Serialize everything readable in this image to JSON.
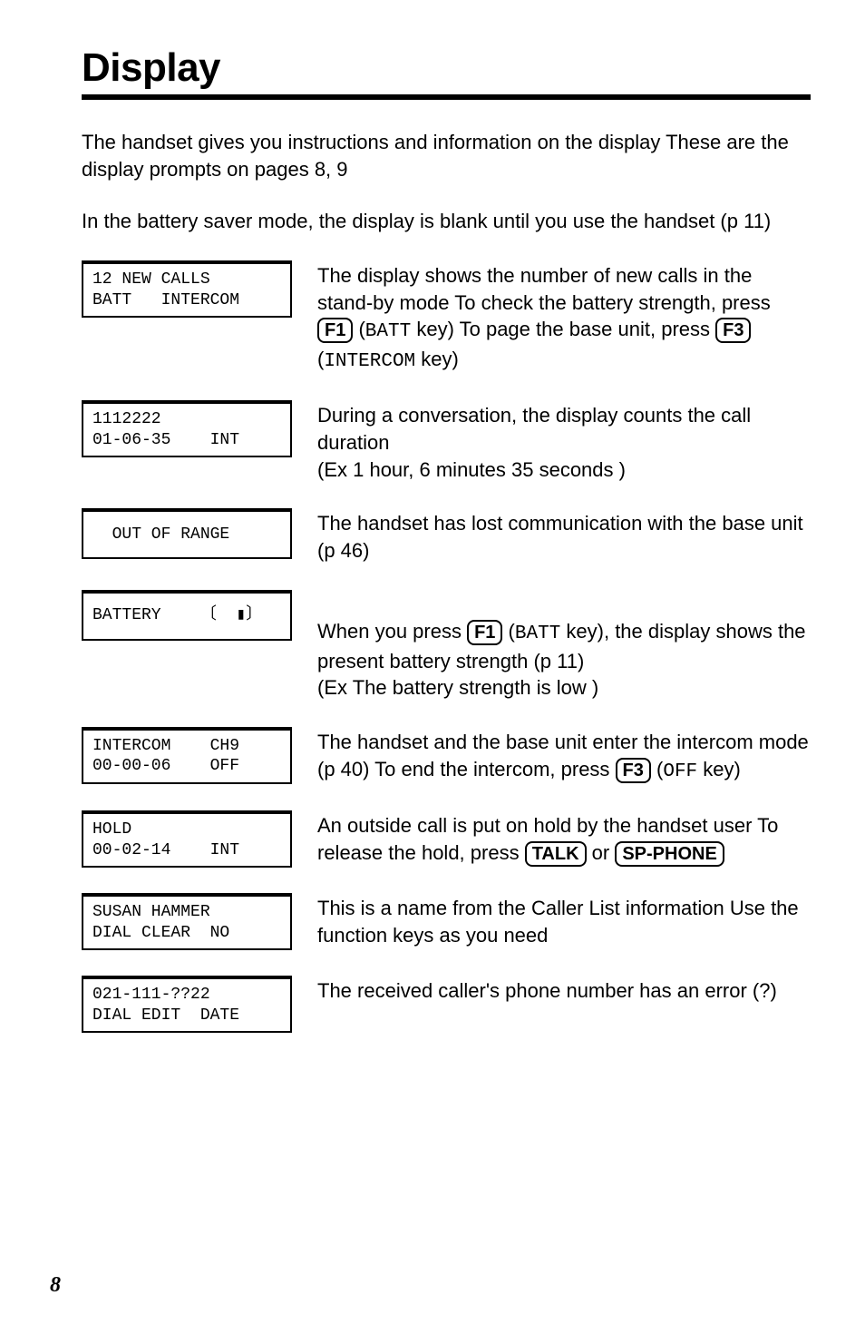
{
  "page": {
    "title": "Display",
    "intro_p1": "The handset gives you instructions and information on the display  These are the display prompts on pages 8, 9",
    "intro_p2": "In the battery saver mode, the display is blank until you use the handset (p  11)",
    "page_number": "8"
  },
  "keys": {
    "F1": "F1",
    "F3": "F3",
    "TALK": "TALK",
    "SP_PHONE": "SP-PHONE"
  },
  "mono": {
    "BATT": "BATT",
    "INTERCOM": "INTERCOM",
    "OFF": "OFF"
  },
  "entries": [
    {
      "lcd": "12 NEW CALLS\nBATT   INTERCOM",
      "desc_pre": "The display shows the number of new calls in the stand-by mode  To check the battery strength, press ",
      "key1": "F1",
      "desc_mid1": " (",
      "mono1": "BATT",
      "desc_mid2": " key)  To page the base unit, press ",
      "key2": "F3",
      "desc_mid3": " (",
      "mono2": "INTERCOM",
      "desc_end": " key)"
    },
    {
      "lcd": "1112222\n01-06-35    INT",
      "desc_full": "During a conversation, the display counts the call duration\n(Ex  1 hour, 6 minutes 35 seconds )"
    },
    {
      "lcd": "  OUT OF RANGE",
      "desc_full": "The handset has lost communication with the base unit (p  46)"
    },
    {
      "lcd": "BATTERY    〔  ▮〕",
      "desc_pre": "When you press ",
      "key1": "F1",
      "desc_mid1": " (",
      "mono1": "BATT",
      "desc_end": " key), the display shows the present battery strength (p  11)\n(Ex  The battery strength is low )"
    },
    {
      "lcd": "INTERCOM    CH9\n00-00-06    OFF",
      "desc_pre": "The handset and the base unit enter the intercom mode (p  40)  To end the intercom, press ",
      "key1": "F3",
      "desc_mid1": " (",
      "mono1": "OFF",
      "desc_end": " key)"
    },
    {
      "lcd": "HOLD\n00-02-14    INT",
      "desc_pre": "An outside call is put on hold by the handset user  To release the hold, press ",
      "key1": "TALK",
      "desc_mid1": " or ",
      "key2": "SP_PHONE",
      "desc_end": ""
    },
    {
      "lcd": "SUSAN HAMMER\nDIAL CLEAR  NO",
      "desc_full": "This is a name from the Caller List information  Use the function keys as you need"
    },
    {
      "lcd": "021-111-??22\nDIAL EDIT  DATE",
      "desc_full": "The received caller's phone number has an error (?)"
    }
  ]
}
